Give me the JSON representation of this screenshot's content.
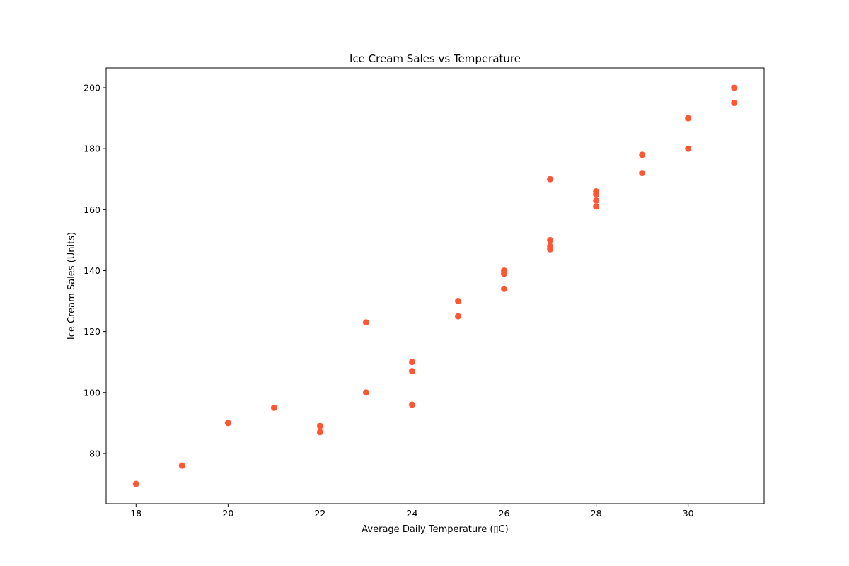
{
  "chart_data": {
    "type": "scatter",
    "title": "Ice Cream Sales vs Temperature",
    "xlabel": "Average Daily Temperature (▯C)",
    "ylabel": "Ice Cream Sales (Units)",
    "xlim": [
      17.35,
      31.65
    ],
    "ylim": [
      63.5,
      206.5
    ],
    "x_ticks": [
      18,
      20,
      22,
      24,
      26,
      28,
      30
    ],
    "y_ticks": [
      80,
      100,
      120,
      140,
      160,
      180,
      200
    ],
    "grid": false,
    "marker_color": "#ff5733",
    "points": [
      {
        "x": 18,
        "y": 70
      },
      {
        "x": 19,
        "y": 76
      },
      {
        "x": 20,
        "y": 90
      },
      {
        "x": 21,
        "y": 95
      },
      {
        "x": 22,
        "y": 89
      },
      {
        "x": 22,
        "y": 87
      },
      {
        "x": 23,
        "y": 123
      },
      {
        "x": 23,
        "y": 100
      },
      {
        "x": 24,
        "y": 110
      },
      {
        "x": 24,
        "y": 107
      },
      {
        "x": 24,
        "y": 96
      },
      {
        "x": 25,
        "y": 130
      },
      {
        "x": 25,
        "y": 125
      },
      {
        "x": 26,
        "y": 140
      },
      {
        "x": 26,
        "y": 139
      },
      {
        "x": 26,
        "y": 134
      },
      {
        "x": 27,
        "y": 170
      },
      {
        "x": 27,
        "y": 150
      },
      {
        "x": 27,
        "y": 148
      },
      {
        "x": 27,
        "y": 147
      },
      {
        "x": 28,
        "y": 166
      },
      {
        "x": 28,
        "y": 165
      },
      {
        "x": 28,
        "y": 163
      },
      {
        "x": 28,
        "y": 161
      },
      {
        "x": 29,
        "y": 178
      },
      {
        "x": 29,
        "y": 172
      },
      {
        "x": 30,
        "y": 190
      },
      {
        "x": 30,
        "y": 180
      },
      {
        "x": 31,
        "y": 200
      },
      {
        "x": 31,
        "y": 195
      }
    ]
  }
}
